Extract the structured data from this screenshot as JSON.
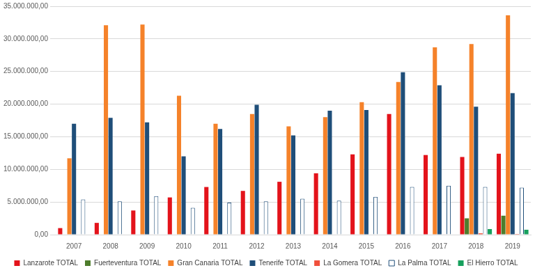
{
  "chart_data": {
    "type": "bar",
    "categories": [
      "2007",
      "2008",
      "2009",
      "2010",
      "2011",
      "2012",
      "2013",
      "2014",
      "2015",
      "2016",
      "2017",
      "2018",
      "2019"
    ],
    "series": [
      {
        "name": "Lanzarote TOTAL",
        "color": "#e3131b",
        "values": [
          1000000,
          1800000,
          3700000,
          5700000,
          7300000,
          6700000,
          8100000,
          9400000,
          12300000,
          18500000,
          12200000,
          11900000,
          12400000
        ]
      },
      {
        "name": "Fuerteventura TOTAL",
        "color": "#4e7d2c",
        "values": [
          0,
          0,
          0,
          0,
          0,
          0,
          0,
          0,
          0,
          0,
          0,
          2500000,
          2900000
        ]
      },
      {
        "name": "Gran Canaria TOTAL",
        "color": "#f5822a",
        "values": [
          11700000,
          32100000,
          32200000,
          21300000,
          17000000,
          18500000,
          16600000,
          18000000,
          20300000,
          23400000,
          28700000,
          29200000,
          33600000
        ]
      },
      {
        "name": "Tenerife TOTAL",
        "color": "#1f4e79",
        "values": [
          17000000,
          17900000,
          17200000,
          12000000,
          16200000,
          19900000,
          15200000,
          19000000,
          19100000,
          24900000,
          22900000,
          19600000,
          21700000
        ]
      },
      {
        "name": "La Gomera TOTAL",
        "color": "#f0503c",
        "values": [
          0,
          0,
          50000,
          50000,
          50000,
          0,
          0,
          0,
          0,
          0,
          50000,
          200000,
          100000
        ]
      },
      {
        "name": "La Palma TOTAL",
        "color": "#ffffff",
        "values": [
          5400000,
          5100000,
          5900000,
          4100000,
          4900000,
          5100000,
          5500000,
          5200000,
          5800000,
          7300000,
          7500000,
          7300000,
          7200000
        ]
      },
      {
        "name": "El Hierro TOTAL",
        "color": "#17a05d",
        "values": [
          0,
          0,
          0,
          0,
          0,
          0,
          0,
          0,
          0,
          0,
          0,
          850000,
          750000
        ]
      }
    ],
    "ylim": [
      0,
      35000000
    ],
    "yticks": [
      {
        "value": 0,
        "label": "0,00"
      },
      {
        "value": 5000000,
        "label": "5.000.000,00"
      },
      {
        "value": 10000000,
        "label": "10.000.000,00"
      },
      {
        "value": 15000000,
        "label": "15.000.000,00"
      },
      {
        "value": 20000000,
        "label": "20.000.000,00"
      },
      {
        "value": 25000000,
        "label": "25.000.000,00"
      },
      {
        "value": 30000000,
        "label": "30.000.000,00"
      },
      {
        "value": 35000000,
        "label": "35.000.000,00"
      }
    ],
    "grid": true,
    "legend": "bottom"
  }
}
